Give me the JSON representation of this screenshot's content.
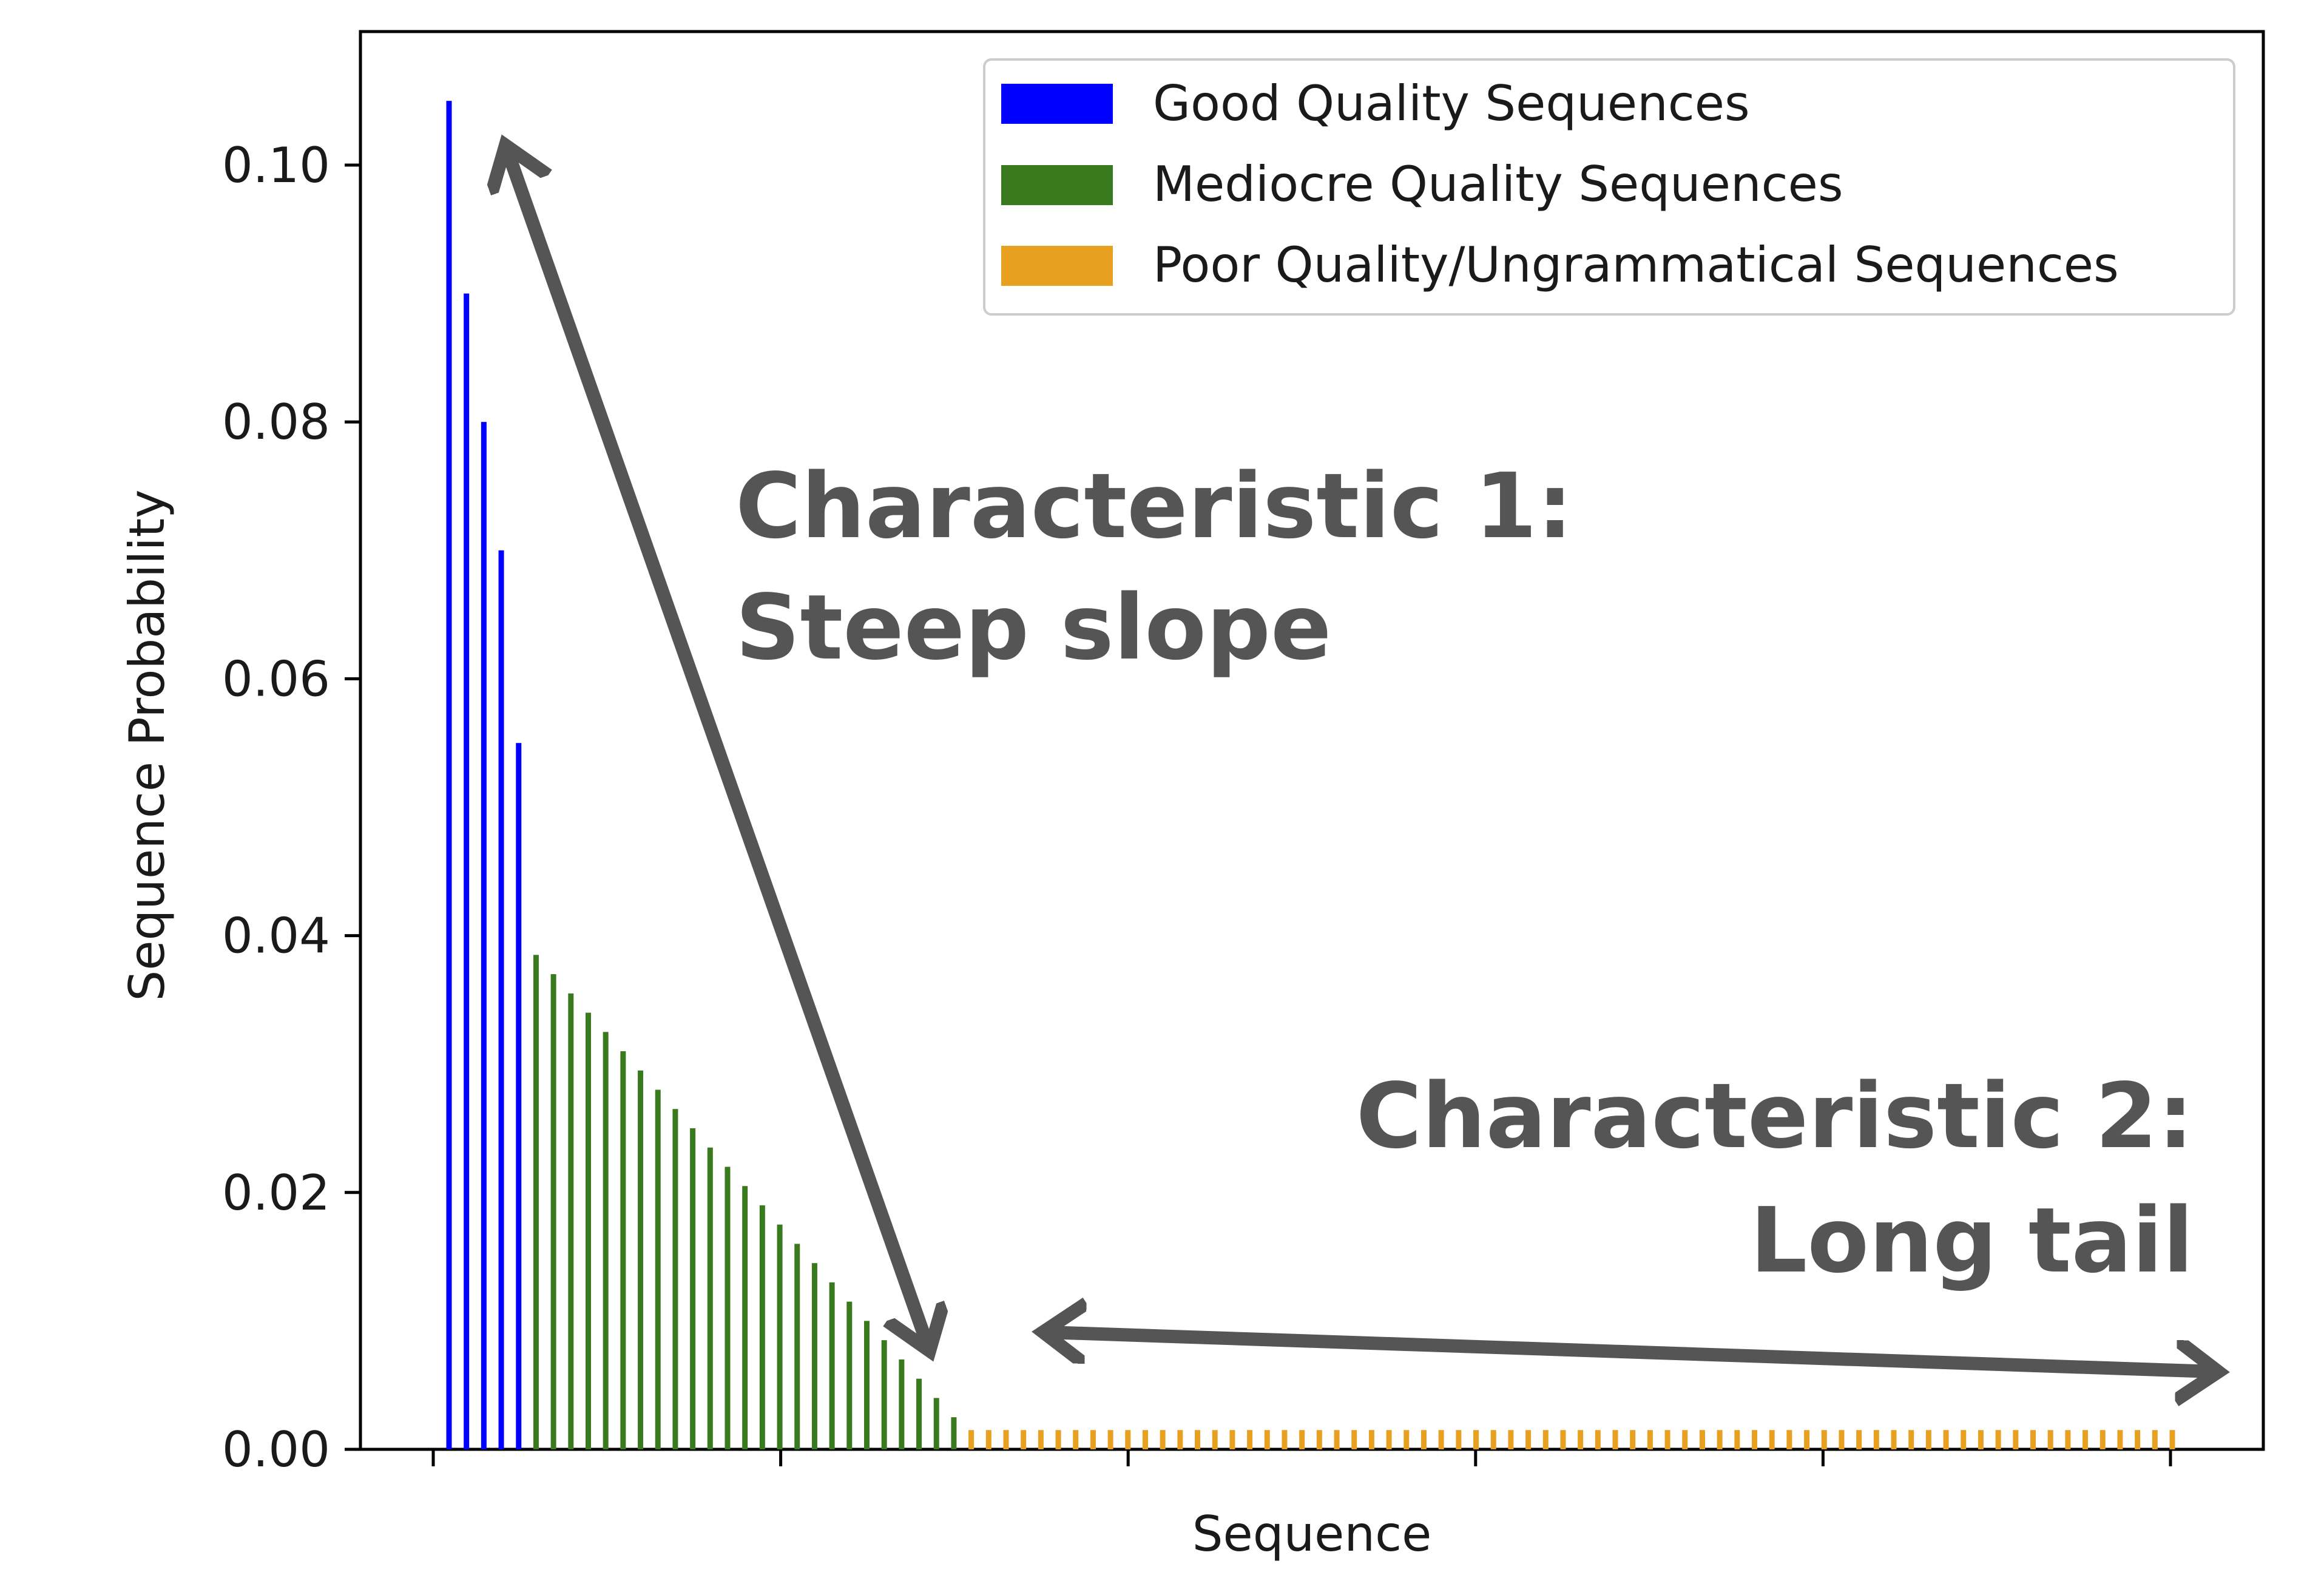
{
  "chart_data": {
    "type": "bar",
    "title": "",
    "xlabel": "Sequence",
    "ylabel": "Sequence Probability",
    "ylim": [
      0,
      0.11
    ],
    "yticks": [
      "0.00",
      "0.02",
      "0.04",
      "0.06",
      "0.08",
      "0.10"
    ],
    "ytick_values": [
      0,
      0.02,
      0.04,
      0.06,
      0.08,
      0.1
    ],
    "xtick_count": 6,
    "grid": false,
    "legend_position": "top-right",
    "series": [
      {
        "name": "Good Quality Sequences",
        "color": "#0000ff",
        "values": [
          0.105,
          0.09,
          0.08,
          0.07,
          0.055
        ]
      },
      {
        "name": "Mediocre Quality Sequences",
        "color": "#3a7a1e",
        "values": [
          0.0385,
          0.037,
          0.0355,
          0.034,
          0.0325,
          0.031,
          0.0295,
          0.028,
          0.0265,
          0.025,
          0.0235,
          0.022,
          0.0205,
          0.019,
          0.0175,
          0.016,
          0.0145,
          0.013,
          0.0115,
          0.01,
          0.0085,
          0.007,
          0.0055,
          0.004,
          0.0025
        ]
      },
      {
        "name": "Poor Quality/Ungrammatical Sequences",
        "color": "#e8a020",
        "values": [
          0.0015,
          0.0015,
          0.0015,
          0.0015,
          0.0015,
          0.0015,
          0.0015,
          0.0015,
          0.0015,
          0.0015,
          0.0015,
          0.0015,
          0.0015,
          0.0015,
          0.0015,
          0.0015,
          0.0015,
          0.0015,
          0.0015,
          0.0015,
          0.0015,
          0.0015,
          0.0015,
          0.0015,
          0.0015,
          0.0015,
          0.0015,
          0.0015,
          0.0015,
          0.0015,
          0.0015,
          0.0015,
          0.0015,
          0.0015,
          0.0015,
          0.0015,
          0.0015,
          0.0015,
          0.0015,
          0.0015,
          0.0015,
          0.0015,
          0.0015,
          0.0015,
          0.0015,
          0.0015,
          0.0015,
          0.0015,
          0.0015,
          0.0015,
          0.0015,
          0.0015,
          0.0015,
          0.0015,
          0.0015,
          0.0015,
          0.0015,
          0.0015,
          0.0015,
          0.0015,
          0.0015,
          0.0015,
          0.0015,
          0.0015,
          0.0015,
          0.0015,
          0.0015,
          0.0015,
          0.0015,
          0.0015
        ]
      }
    ],
    "annotations": [
      {
        "name": "characteristic-1",
        "lines": [
          "Characteristic 1:",
          "Steep slope"
        ]
      },
      {
        "name": "characteristic-2",
        "lines": [
          "Characteristic 2:",
          "Long tail"
        ]
      }
    ],
    "annotation_color": "#555555"
  }
}
